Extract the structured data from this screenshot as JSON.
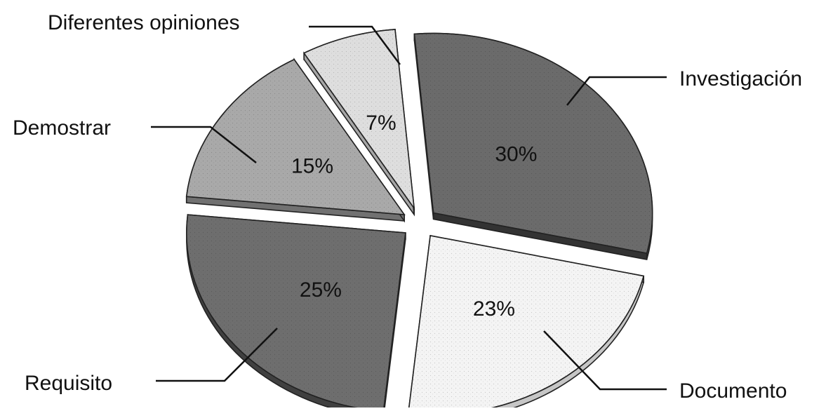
{
  "chart_data": {
    "type": "pie",
    "exploded": true,
    "three_d": true,
    "slices": [
      {
        "label": "Investigación",
        "value": 30,
        "value_label": "30%",
        "color": "#6b6b6b"
      },
      {
        "label": "Documento",
        "value": 23,
        "value_label": "23%",
        "color": "#f4f4f4"
      },
      {
        "label": "Requisito",
        "value": 25,
        "value_label": "25%",
        "color": "#6e6e6e"
      },
      {
        "label": "Demostrar",
        "value": 15,
        "value_label": "15%",
        "color": "#a9a9a9"
      },
      {
        "label": "Diferentes opiniones",
        "value": 7,
        "value_label": "7%",
        "color": "#dedede"
      }
    ]
  }
}
